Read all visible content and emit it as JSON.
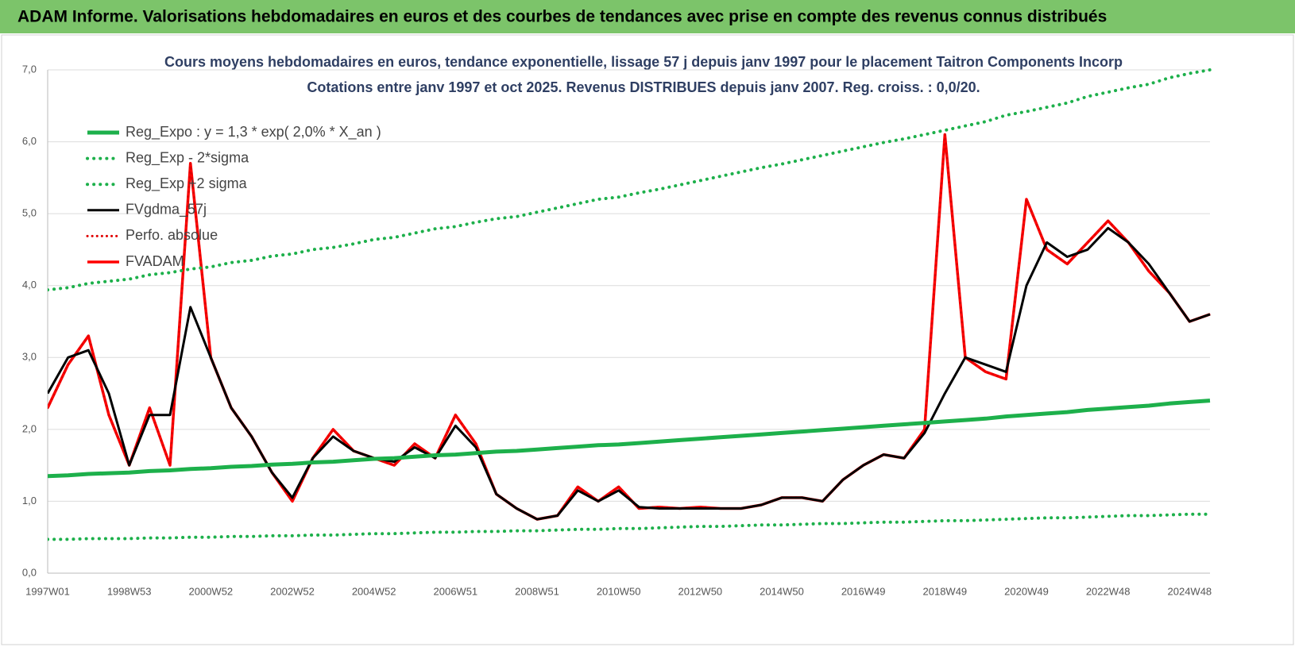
{
  "header": {
    "title": "ADAM Informe. Valorisations hebdomadaires en euros et des courbes de tendances avec prise en compte des revenus connus distribués"
  },
  "chart_data": {
    "type": "line",
    "title": "Cours moyens hebdomadaires en euros, tendance exponentielle, lissage 57 j depuis janv 1997 pour le placement Taitron Components Incorp",
    "subtitle": "Cotations entre janv 1997 et oct 2025. Revenus DISTRIBUES depuis janv 2007. Reg. croiss. : 0,0/20.",
    "categories": [
      "1997W01",
      null,
      null,
      null,
      "1998W53",
      null,
      null,
      null,
      "2000W52",
      null,
      null,
      null,
      "2002W52",
      null,
      null,
      null,
      "2004W52",
      null,
      null,
      null,
      "2006W51",
      null,
      null,
      null,
      "2008W51",
      null,
      null,
      null,
      "2010W50",
      null,
      null,
      null,
      "2012W50",
      null,
      null,
      null,
      "2014W50",
      null,
      null,
      null,
      "2016W49",
      null,
      null,
      null,
      "2018W49",
      null,
      null,
      null,
      "2020W49",
      null,
      null,
      null,
      "2022W48",
      null,
      null,
      null,
      "2024W48",
      null
    ],
    "ylim": [
      0,
      7
    ],
    "yticks": [
      {
        "value": 0,
        "label": "0,0"
      },
      {
        "value": 1,
        "label": "1,0"
      },
      {
        "value": 2,
        "label": "2,0"
      },
      {
        "value": 3,
        "label": "3,0"
      },
      {
        "value": 4,
        "label": "4,0"
      },
      {
        "value": 5,
        "label": "5,0"
      },
      {
        "value": 6,
        "label": "6,0"
      },
      {
        "value": 7,
        "label": "7,0"
      }
    ],
    "grid": true,
    "legend": "upper left",
    "series": [
      {
        "name": "Reg_Expo : y = 1,3 * exp( 2,0% *  X_an )",
        "color": "#1db04b",
        "style": "solid",
        "width": 5,
        "values": [
          1.35,
          1.36,
          1.38,
          1.39,
          1.4,
          1.42,
          1.43,
          1.45,
          1.46,
          1.48,
          1.49,
          1.51,
          1.52,
          1.54,
          1.55,
          1.57,
          1.59,
          1.6,
          1.62,
          1.64,
          1.65,
          1.67,
          1.69,
          1.7,
          1.72,
          1.74,
          1.76,
          1.78,
          1.79,
          1.81,
          1.83,
          1.85,
          1.87,
          1.89,
          1.91,
          1.93,
          1.95,
          1.97,
          1.99,
          2.01,
          2.03,
          2.05,
          2.07,
          2.09,
          2.11,
          2.13,
          2.15,
          2.18,
          2.2,
          2.22,
          2.24,
          2.27,
          2.29,
          2.31,
          2.33,
          2.36,
          2.38,
          2.4
        ]
      },
      {
        "name": "Reg_Exp - 2*sigma",
        "color": "#1db04b",
        "style": "dotted",
        "width": 4,
        "values": [
          0.47,
          0.47,
          0.48,
          0.48,
          0.48,
          0.49,
          0.49,
          0.5,
          0.5,
          0.51,
          0.51,
          0.52,
          0.52,
          0.53,
          0.53,
          0.54,
          0.55,
          0.55,
          0.56,
          0.57,
          0.57,
          0.58,
          0.58,
          0.59,
          0.59,
          0.6,
          0.61,
          0.61,
          0.62,
          0.62,
          0.63,
          0.64,
          0.65,
          0.65,
          0.66,
          0.67,
          0.67,
          0.68,
          0.69,
          0.69,
          0.7,
          0.71,
          0.71,
          0.72,
          0.73,
          0.73,
          0.74,
          0.75,
          0.76,
          0.77,
          0.77,
          0.78,
          0.79,
          0.8,
          0.8,
          0.81,
          0.82,
          0.82
        ]
      },
      {
        "name": "Reg_Exp +2 sigma",
        "color": "#1db04b",
        "style": "dotted",
        "width": 4,
        "values": [
          3.94,
          3.97,
          4.03,
          4.06,
          4.09,
          4.15,
          4.18,
          4.23,
          4.26,
          4.32,
          4.35,
          4.41,
          4.44,
          4.5,
          4.53,
          4.58,
          4.64,
          4.67,
          4.73,
          4.79,
          4.82,
          4.88,
          4.93,
          4.96,
          5.02,
          5.08,
          5.14,
          5.2,
          5.23,
          5.29,
          5.34,
          5.4,
          5.46,
          5.52,
          5.58,
          5.64,
          5.69,
          5.75,
          5.81,
          5.87,
          5.93,
          5.99,
          6.04,
          6.1,
          6.16,
          6.22,
          6.28,
          6.37,
          6.42,
          6.48,
          6.54,
          6.63,
          6.69,
          6.75,
          6.8,
          6.89,
          6.95,
          7.0
        ]
      },
      {
        "name": "FVgdma_57j",
        "color": "#000000",
        "style": "solid",
        "width": 3,
        "values": [
          2.5,
          3.0,
          3.1,
          2.5,
          1.5,
          2.2,
          2.2,
          3.7,
          3.0,
          2.3,
          1.9,
          1.4,
          1.05,
          1.6,
          1.9,
          1.7,
          1.6,
          1.55,
          1.75,
          1.6,
          2.05,
          1.75,
          1.1,
          0.9,
          0.75,
          0.8,
          1.15,
          1.0,
          1.15,
          0.92,
          0.9,
          0.9,
          0.9,
          0.9,
          0.9,
          0.95,
          1.05,
          1.05,
          1.0,
          1.3,
          1.5,
          1.65,
          1.6,
          1.95,
          2.5,
          3.0,
          2.9,
          2.8,
          4.0,
          4.6,
          4.4,
          4.5,
          4.8,
          4.6,
          4.3,
          3.9,
          3.5,
          3.6
        ]
      },
      {
        "name": "Perfo. absolue",
        "color": "#e00000",
        "style": "dotted",
        "width": 3,
        "values": [
          2.3,
          2.9,
          3.3,
          2.2,
          1.5,
          2.3,
          1.5,
          5.7,
          3.0,
          2.3,
          1.9,
          1.4,
          1.0,
          1.6,
          2.0,
          1.7,
          1.6,
          1.5,
          1.8,
          1.6,
          2.2,
          1.8,
          1.1,
          0.9,
          0.75,
          0.8,
          1.2,
          1.0,
          1.2,
          0.9,
          0.92,
          0.9,
          0.92,
          0.9,
          0.9,
          0.95,
          1.05,
          1.05,
          1.0,
          1.3,
          1.5,
          1.65,
          1.6,
          2.0,
          6.1,
          3.0,
          2.8,
          2.7,
          5.2,
          4.5,
          4.3,
          4.6,
          4.9,
          4.6,
          4.2,
          3.9,
          3.5,
          3.6
        ]
      },
      {
        "name": "FVADAM",
        "color": "#ff0000",
        "style": "solid",
        "width": 3.5,
        "values": [
          2.3,
          2.9,
          3.3,
          2.2,
          1.5,
          2.3,
          1.5,
          5.7,
          3.0,
          2.3,
          1.9,
          1.4,
          1.0,
          1.6,
          2.0,
          1.7,
          1.6,
          1.5,
          1.8,
          1.6,
          2.2,
          1.8,
          1.1,
          0.9,
          0.75,
          0.8,
          1.2,
          1.0,
          1.2,
          0.9,
          0.92,
          0.9,
          0.92,
          0.9,
          0.9,
          0.95,
          1.05,
          1.05,
          1.0,
          1.3,
          1.5,
          1.65,
          1.6,
          2.0,
          6.1,
          3.0,
          2.8,
          2.7,
          5.2,
          4.5,
          4.3,
          4.6,
          4.9,
          4.6,
          4.2,
          3.9,
          3.5,
          3.6
        ]
      }
    ]
  }
}
